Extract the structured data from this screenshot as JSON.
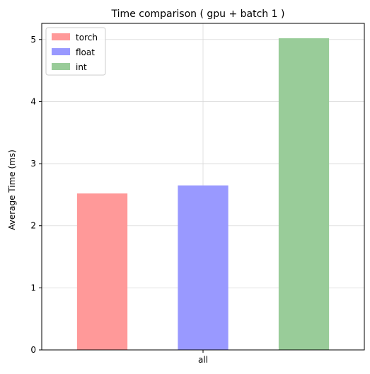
{
  "chart_data": {
    "type": "bar",
    "title": "Time comparison ( gpu + batch 1 )",
    "xlabel": "",
    "ylabel": "Average Time (ms)",
    "categories": [
      "all"
    ],
    "ylim": [
      0,
      5.26
    ],
    "yticks": [
      0,
      1,
      2,
      3,
      4,
      5
    ],
    "grid": true,
    "legend_position": "top-left",
    "series": [
      {
        "name": "torch",
        "values": [
          2.52
        ],
        "color": "#ff9999"
      },
      {
        "name": "float",
        "values": [
          2.65
        ],
        "color": "#9999ff"
      },
      {
        "name": "int",
        "values": [
          5.02
        ],
        "color": "#99cc99"
      }
    ]
  }
}
